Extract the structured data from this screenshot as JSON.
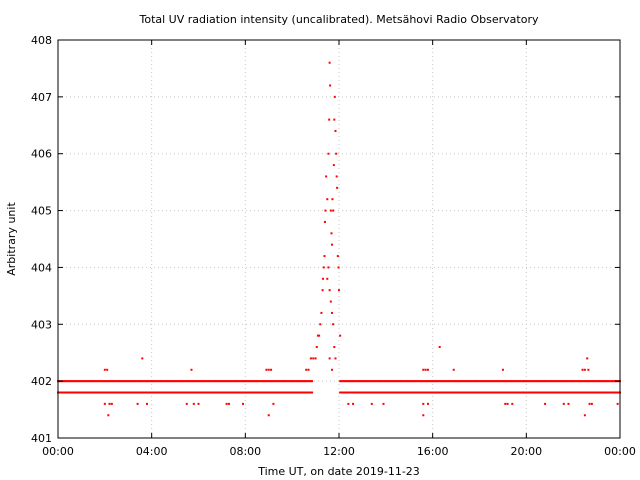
{
  "chart_data": {
    "type": "scatter",
    "title": "Total UV radiation intensity (uncalibrated). Metsähovi Radio Observatory",
    "xlabel": "Time UT, on date 2019-11-23",
    "ylabel": "Arbitrary unit",
    "x_unit": "hours UT",
    "xlim": [
      0,
      24
    ],
    "ylim": [
      401,
      408
    ],
    "x_ticks": [
      {
        "value": 0,
        "label": "00:00"
      },
      {
        "value": 4,
        "label": "04:00"
      },
      {
        "value": 8,
        "label": "08:00"
      },
      {
        "value": 12,
        "label": "12:00"
      },
      {
        "value": 16,
        "label": "16:00"
      },
      {
        "value": 20,
        "label": "20:00"
      },
      {
        "value": 24,
        "label": "00:00"
      }
    ],
    "y_ticks": [
      {
        "value": 401,
        "label": "401"
      },
      {
        "value": 402,
        "label": "402"
      },
      {
        "value": 403,
        "label": "403"
      },
      {
        "value": 404,
        "label": "404"
      },
      {
        "value": 405,
        "label": "405"
      },
      {
        "value": 406,
        "label": "406"
      },
      {
        "value": 407,
        "label": "407"
      },
      {
        "value": 408,
        "label": "408"
      }
    ],
    "grid": true,
    "legend": "none",
    "marker_color": "#ff0000",
    "baseline_bands": [
      {
        "y": 402.0,
        "x_ranges": [
          [
            0.0,
            10.85
          ],
          [
            12.05,
            24.0
          ]
        ]
      },
      {
        "y": 401.8,
        "x_ranges": [
          [
            0.0,
            10.85
          ],
          [
            12.05,
            24.0
          ]
        ]
      }
    ],
    "points": [
      [
        2.0,
        402.2
      ],
      [
        2.1,
        402.2
      ],
      [
        2.0,
        401.6
      ],
      [
        2.2,
        401.6
      ],
      [
        2.3,
        401.6
      ],
      [
        2.15,
        401.4
      ],
      [
        3.6,
        402.4
      ],
      [
        3.4,
        401.6
      ],
      [
        3.8,
        401.6
      ],
      [
        5.5,
        401.6
      ],
      [
        5.7,
        402.2
      ],
      [
        5.8,
        401.6
      ],
      [
        6.0,
        401.6
      ],
      [
        7.2,
        401.6
      ],
      [
        7.3,
        401.6
      ],
      [
        7.9,
        401.6
      ],
      [
        8.9,
        402.2
      ],
      [
        9.0,
        402.2
      ],
      [
        9.1,
        402.2
      ],
      [
        9.0,
        401.4
      ],
      [
        9.2,
        401.6
      ],
      [
        10.6,
        402.2
      ],
      [
        10.7,
        402.2
      ],
      [
        10.8,
        402.4
      ],
      [
        10.9,
        402.4
      ],
      [
        11.0,
        402.4
      ],
      [
        11.05,
        402.6
      ],
      [
        11.1,
        402.8
      ],
      [
        11.15,
        402.8
      ],
      [
        11.2,
        403.0
      ],
      [
        11.25,
        403.2
      ],
      [
        11.3,
        403.6
      ],
      [
        11.32,
        403.8
      ],
      [
        11.35,
        404.0
      ],
      [
        11.38,
        404.2
      ],
      [
        11.4,
        404.8
      ],
      [
        11.42,
        405.0
      ],
      [
        11.45,
        405.6
      ],
      [
        11.5,
        405.2
      ],
      [
        11.55,
        406.0
      ],
      [
        11.58,
        406.6
      ],
      [
        11.6,
        407.6
      ],
      [
        11.62,
        407.2
      ],
      [
        11.65,
        405.0
      ],
      [
        11.68,
        404.6
      ],
      [
        11.7,
        404.4
      ],
      [
        11.72,
        405.2
      ],
      [
        11.75,
        405.0
      ],
      [
        11.78,
        405.8
      ],
      [
        11.8,
        406.6
      ],
      [
        11.82,
        407.0
      ],
      [
        11.85,
        406.4
      ],
      [
        11.88,
        406.0
      ],
      [
        11.9,
        405.6
      ],
      [
        11.92,
        405.4
      ],
      [
        11.95,
        404.2
      ],
      [
        11.98,
        404.0
      ],
      [
        12.0,
        403.6
      ],
      [
        12.05,
        402.8
      ],
      [
        11.5,
        403.8
      ],
      [
        11.55,
        404.0
      ],
      [
        11.6,
        403.6
      ],
      [
        11.65,
        403.4
      ],
      [
        11.7,
        403.2
      ],
      [
        11.75,
        403.0
      ],
      [
        11.8,
        402.6
      ],
      [
        11.85,
        402.4
      ],
      [
        11.7,
        402.2
      ],
      [
        11.6,
        402.4
      ],
      [
        12.4,
        401.6
      ],
      [
        12.6,
        401.6
      ],
      [
        13.4,
        401.6
      ],
      [
        13.9,
        401.6
      ],
      [
        15.6,
        402.2
      ],
      [
        15.7,
        402.2
      ],
      [
        15.8,
        402.2
      ],
      [
        15.6,
        401.6
      ],
      [
        15.8,
        401.6
      ],
      [
        15.6,
        401.4
      ],
      [
        16.3,
        402.6
      ],
      [
        16.9,
        402.2
      ],
      [
        19.0,
        402.2
      ],
      [
        19.1,
        401.6
      ],
      [
        19.2,
        401.6
      ],
      [
        19.4,
        401.6
      ],
      [
        20.8,
        401.6
      ],
      [
        21.6,
        401.6
      ],
      [
        21.8,
        401.6
      ],
      [
        22.4,
        402.2
      ],
      [
        22.5,
        402.2
      ],
      [
        22.6,
        402.4
      ],
      [
        22.65,
        402.2
      ],
      [
        22.7,
        401.6
      ],
      [
        22.5,
        401.4
      ],
      [
        22.8,
        401.6
      ],
      [
        23.9,
        401.6
      ]
    ]
  }
}
